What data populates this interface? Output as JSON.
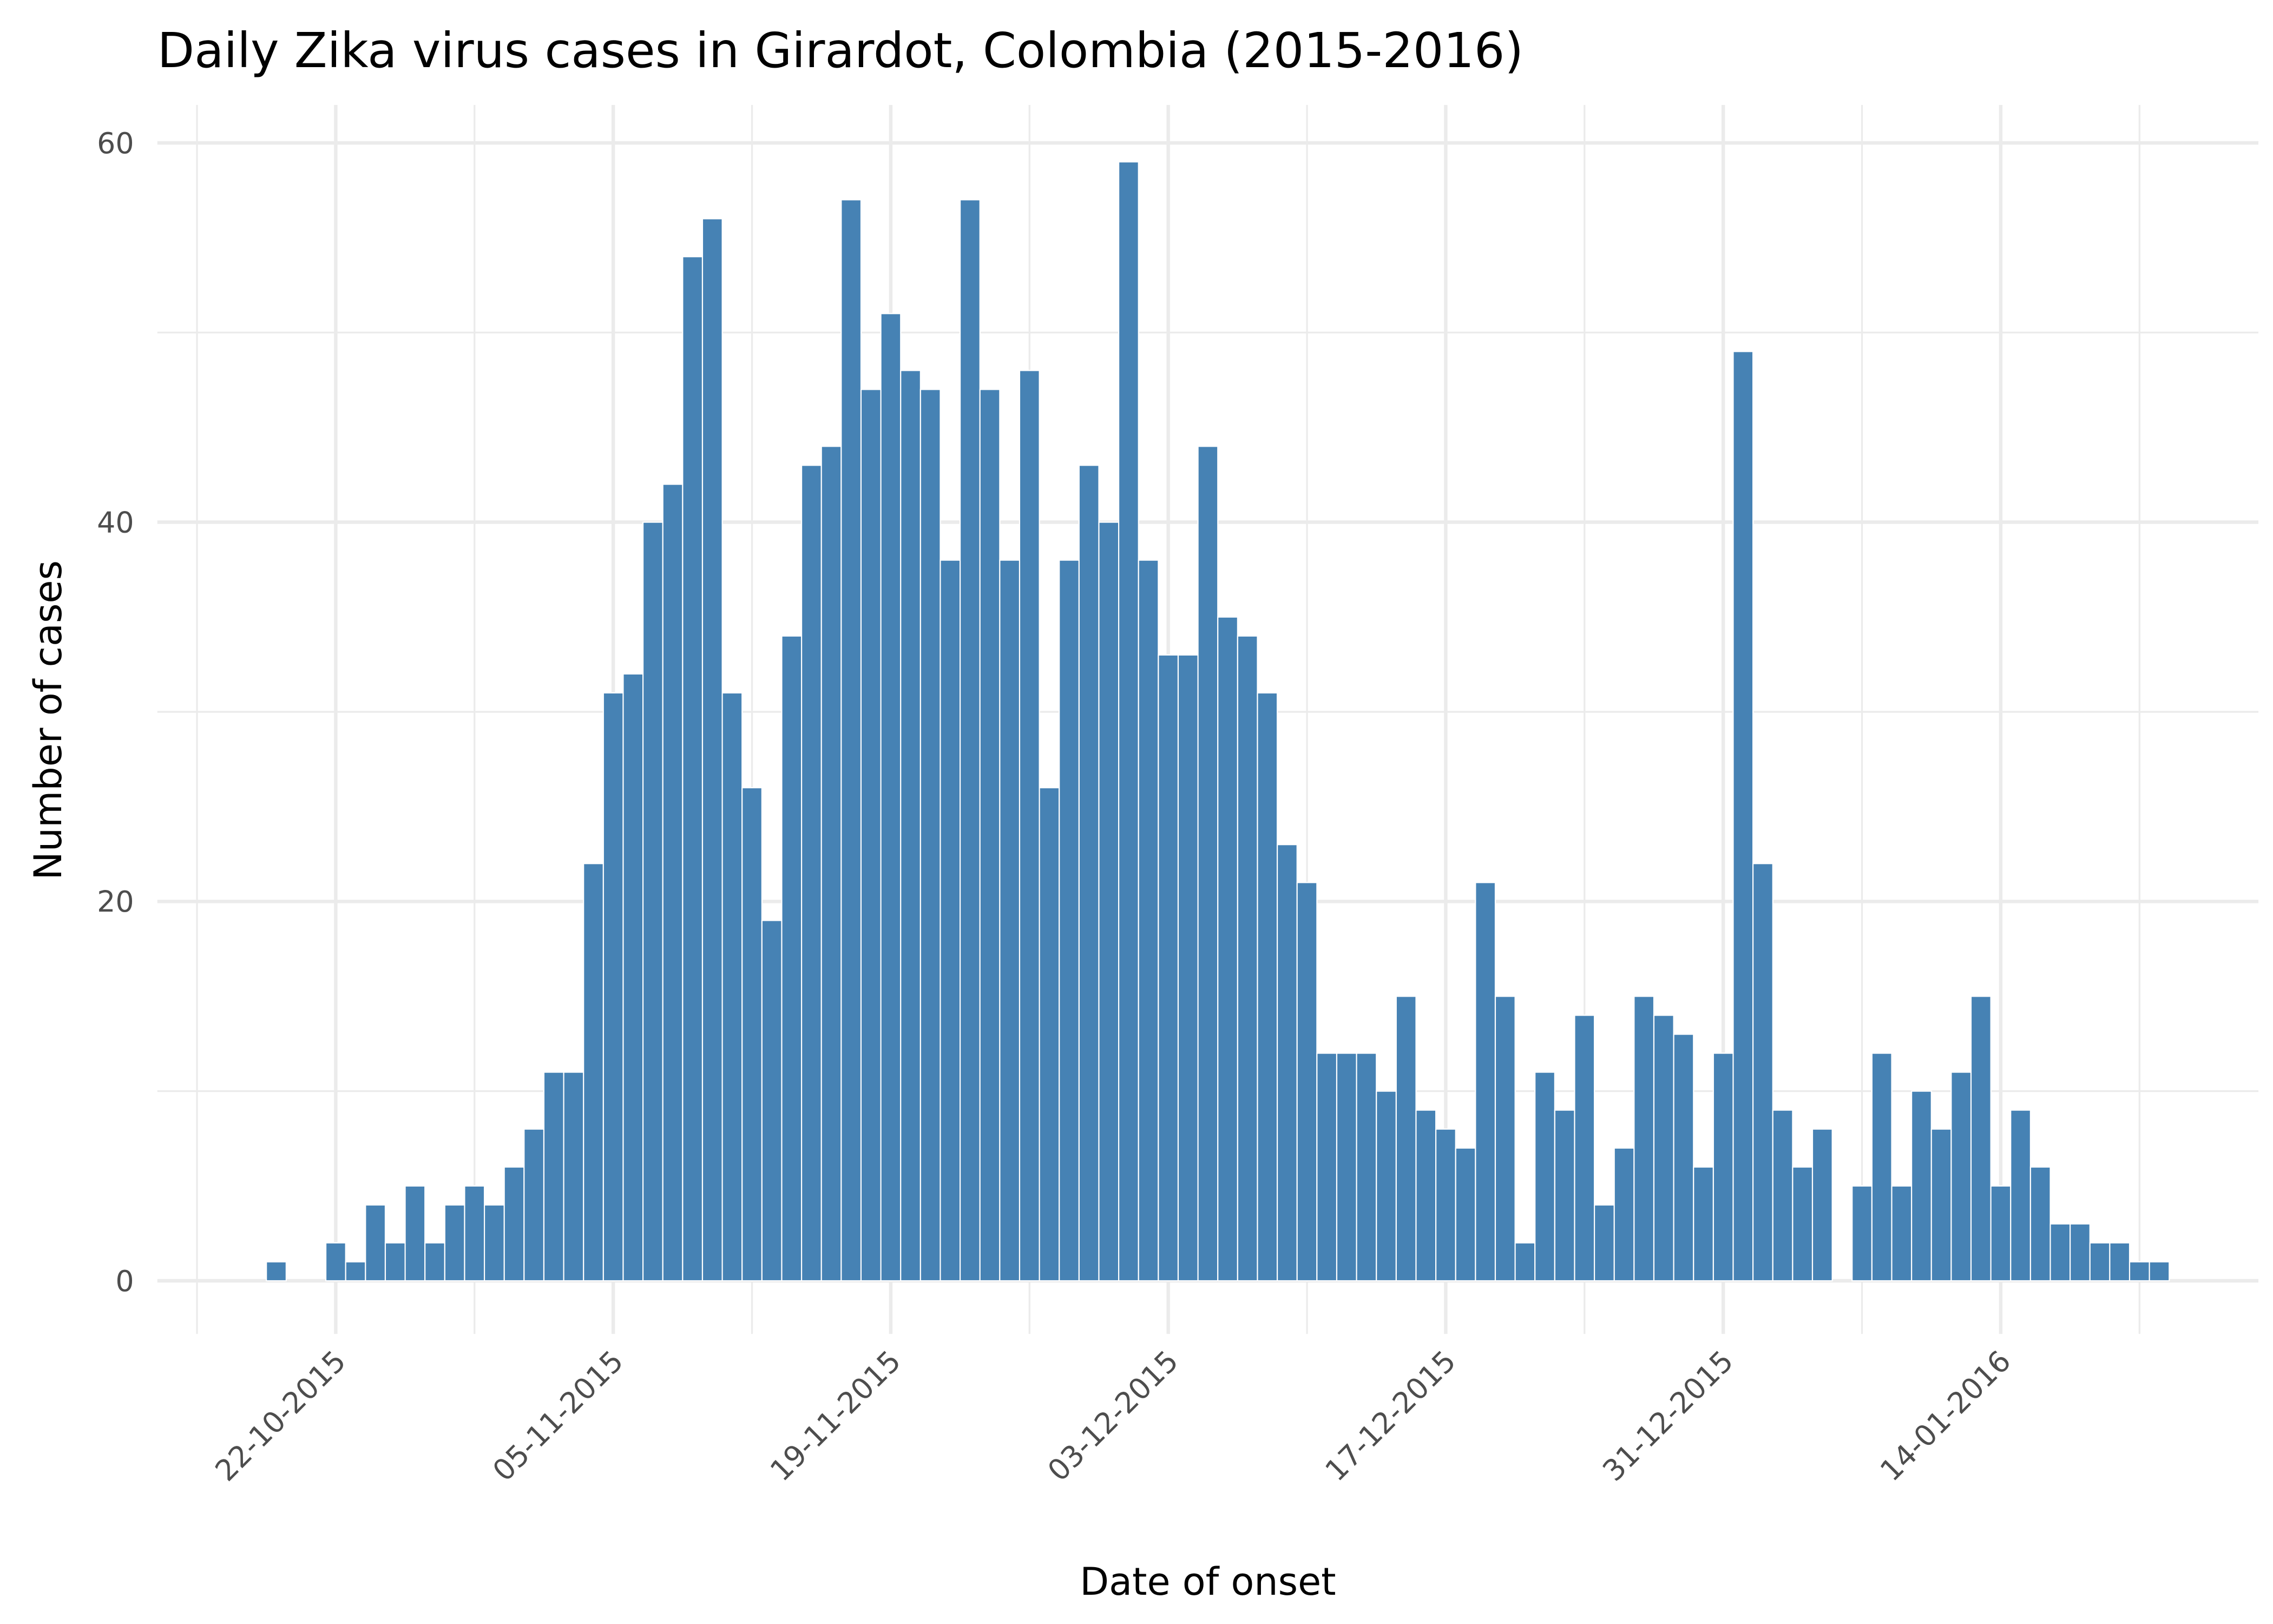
{
  "chart_data": {
    "type": "bar",
    "title": "Daily Zika virus cases in Girardot, Colombia (2015-2016)",
    "x_label": "Date of onset",
    "y_label": "Number of cases",
    "color": "#4682b4",
    "grid": true,
    "x": [
      "19-10-2015",
      "20-10-2015",
      "21-10-2015",
      "22-10-2015",
      "23-10-2015",
      "24-10-2015",
      "25-10-2015",
      "26-10-2015",
      "27-10-2015",
      "28-10-2015",
      "29-10-2015",
      "30-10-2015",
      "31-10-2015",
      "01-11-2015",
      "02-11-2015",
      "03-11-2015",
      "04-11-2015",
      "05-11-2015",
      "06-11-2015",
      "07-11-2015",
      "08-11-2015",
      "09-11-2015",
      "10-11-2015",
      "11-11-2015",
      "12-11-2015",
      "13-11-2015",
      "14-11-2015",
      "15-11-2015",
      "16-11-2015",
      "17-11-2015",
      "18-11-2015",
      "19-11-2015",
      "20-11-2015",
      "21-11-2015",
      "22-11-2015",
      "23-11-2015",
      "24-11-2015",
      "25-11-2015",
      "26-11-2015",
      "27-11-2015",
      "28-11-2015",
      "29-11-2015",
      "30-11-2015",
      "01-12-2015",
      "02-12-2015",
      "03-12-2015",
      "04-12-2015",
      "05-12-2015",
      "06-12-2015",
      "07-12-2015",
      "08-12-2015",
      "09-12-2015",
      "10-12-2015",
      "11-12-2015",
      "12-12-2015",
      "13-12-2015",
      "14-12-2015",
      "15-12-2015",
      "16-12-2015",
      "17-12-2015",
      "18-12-2015",
      "19-12-2015",
      "20-12-2015",
      "21-12-2015",
      "22-12-2015",
      "23-12-2015",
      "24-12-2015",
      "25-12-2015",
      "26-12-2015",
      "27-12-2015",
      "28-12-2015",
      "29-12-2015",
      "30-12-2015",
      "31-12-2015",
      "01-01-2016",
      "02-01-2016",
      "03-01-2016",
      "04-01-2016",
      "05-01-2016",
      "06-01-2016",
      "07-01-2016",
      "08-01-2016",
      "09-01-2016",
      "10-01-2016",
      "11-01-2016",
      "12-01-2016",
      "13-01-2016",
      "14-01-2016",
      "15-01-2016",
      "16-01-2016",
      "17-01-2016",
      "18-01-2016",
      "19-01-2016",
      "20-01-2016",
      "21-01-2016",
      "22-01-2016"
    ],
    "values": [
      1,
      0,
      0,
      2,
      1,
      4,
      2,
      5,
      2,
      4,
      5,
      4,
      6,
      8,
      11,
      11,
      22,
      31,
      32,
      40,
      42,
      54,
      56,
      31,
      26,
      19,
      34,
      43,
      44,
      57,
      47,
      51,
      48,
      47,
      38,
      57,
      47,
      38,
      48,
      26,
      38,
      43,
      40,
      59,
      38,
      33,
      33,
      44,
      35,
      34,
      31,
      23,
      21,
      12,
      12,
      12,
      10,
      15,
      9,
      8,
      7,
      21,
      15,
      2,
      11,
      9,
      14,
      4,
      7,
      15,
      14,
      13,
      6,
      12,
      49,
      22,
      9,
      6,
      8,
      0,
      5,
      12,
      5,
      10,
      8,
      11,
      15,
      5,
      9,
      6,
      3,
      3,
      2,
      2,
      1,
      1
    ],
    "xlim": [
      "13-10-2015",
      "27-01-2016"
    ],
    "xticks": [
      "22-10-2015",
      "05-11-2015",
      "19-11-2015",
      "03-12-2015",
      "17-12-2015",
      "31-12-2015",
      "14-01-2016"
    ],
    "minor_xticks": [
      "15-10-2015",
      "29-10-2015",
      "12-11-2015",
      "26-11-2015",
      "10-12-2015",
      "24-12-2015",
      "07-01-2016",
      "21-01-2016"
    ],
    "ylim": [
      -2.8,
      62
    ],
    "yticks": [
      0,
      20,
      40,
      60
    ],
    "minor_yticks": [
      10,
      30,
      50
    ]
  }
}
